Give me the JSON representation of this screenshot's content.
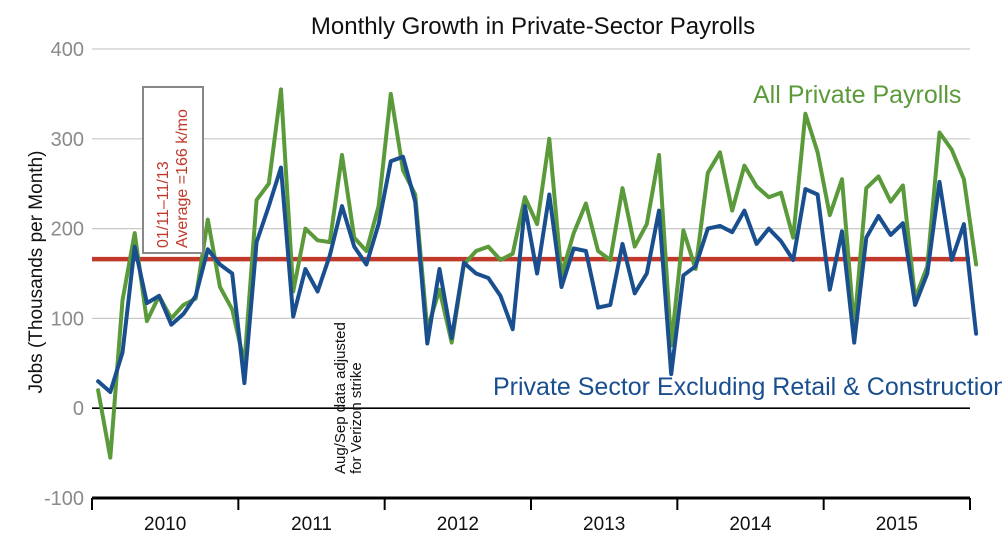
{
  "chart_data": {
    "type": "line",
    "title": "Monthly Growth in Private-Sector Payrolls",
    "ylabel": "Jobs (Thousands per Month)",
    "xlabel": "",
    "ylim": [
      -100,
      400
    ],
    "yticks": [
      400,
      300,
      200,
      100,
      0,
      -100
    ],
    "year_labels": [
      "2010",
      "2011",
      "2012",
      "2013",
      "2014",
      "2015"
    ],
    "x_start": "2010-01",
    "average": {
      "value": 166,
      "line1": "01/11–11/13",
      "line2": "Average =166 k/mo"
    },
    "annotation": {
      "line1": "Aug/Sep data adjusted",
      "line2": "for Verizon strike"
    },
    "series": [
      {
        "name": "All Private Payrolls",
        "color": "#5b9a3a",
        "values": [
          20,
          -55,
          120,
          195,
          97,
          125,
          100,
          115,
          122,
          210,
          135,
          110,
          50,
          232,
          250,
          355,
          130,
          200,
          187,
          185,
          282,
          190,
          175,
          225,
          350,
          265,
          238,
          88,
          132,
          73,
          160,
          175,
          180,
          165,
          172,
          235,
          205,
          300,
          148,
          195,
          228,
          175,
          165,
          245,
          180,
          205,
          282,
          70,
          198,
          155,
          262,
          285,
          220,
          270,
          247,
          235,
          240,
          190,
          328,
          285,
          215,
          255,
          90,
          245,
          258,
          230,
          248,
          122,
          158,
          307,
          288,
          255,
          160
        ]
      },
      {
        "name": "Private Sector Excluding Retail & Construction",
        "color": "#1a4f8f",
        "values": [
          30,
          18,
          62,
          180,
          117,
          125,
          93,
          105,
          125,
          177,
          160,
          150,
          28,
          185,
          225,
          268,
          102,
          155,
          130,
          170,
          225,
          180,
          160,
          205,
          275,
          280,
          230,
          72,
          155,
          78,
          162,
          150,
          145,
          125,
          88,
          225,
          150,
          238,
          135,
          178,
          175,
          112,
          115,
          183,
          128,
          150,
          220,
          38,
          148,
          158,
          200,
          203,
          196,
          220,
          183,
          200,
          186,
          165,
          244,
          238,
          132,
          197,
          73,
          190,
          214,
          193,
          206,
          115,
          150,
          252,
          165,
          205,
          83
        ]
      }
    ]
  }
}
